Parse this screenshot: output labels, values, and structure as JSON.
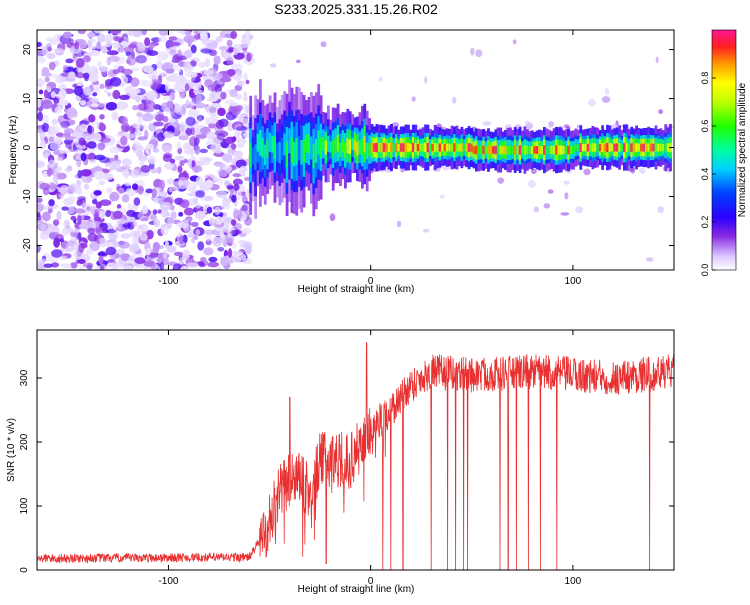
{
  "title": "S233.2025.331.15.26.R02",
  "chart_data": [
    {
      "type": "heatmap",
      "title": "S233.2025.331.15.26.R02",
      "xlabel": "Height of straight line (km)",
      "ylabel": "Frequency (Hz)",
      "xlim": [
        -165,
        150
      ],
      "ylim": [
        -25,
        24
      ],
      "x_ticks": [
        "-100",
        "0",
        "100"
      ],
      "y_ticks": [
        "-20",
        "-10",
        "0",
        "10",
        "20"
      ],
      "x_tick_values": [
        -100,
        0,
        100
      ],
      "y_tick_values": [
        -20,
        -10,
        0,
        10,
        20
      ],
      "colorbar": {
        "label": "Normalized spectral amplitude",
        "range": [
          0,
          1
        ],
        "ticks": [
          "0.0",
          "0.2",
          "0.4",
          "0.6",
          "0.8"
        ],
        "tick_values": [
          0,
          0.2,
          0.4,
          0.6,
          0.8
        ]
      },
      "description_regions": {
        "noise_region_x": [
          -165,
          -60
        ],
        "signal_start_x": -60,
        "signal_freq_hz": 0
      }
    },
    {
      "type": "line",
      "xlabel": "Height of straight line (km)",
      "ylabel": "SNR (10 * v/v)",
      "xlim": [
        -165,
        150
      ],
      "ylim": [
        0,
        375
      ],
      "x_ticks": [
        "-100",
        "0",
        "100"
      ],
      "y_ticks": [
        "0",
        "100",
        "200",
        "300"
      ],
      "x_tick_values": [
        -100,
        0,
        100
      ],
      "y_tick_values": [
        0,
        100,
        200,
        300
      ],
      "series": [
        {
          "name": "SNR",
          "color": "#e83030",
          "anchors_x": [
            -165,
            -60,
            -52,
            -45,
            -38,
            -30,
            -25,
            -20,
            -10,
            -5,
            0,
            10,
            20,
            30,
            50,
            80,
            120,
            150
          ],
          "anchors_y": [
            18,
            20,
            60,
            120,
            150,
            120,
            170,
            175,
            170,
            195,
            220,
            250,
            290,
            310,
            305,
            310,
            300,
            310
          ]
        }
      ],
      "spike_x": [
        -40,
        -22,
        -2,
        6,
        10,
        16,
        30,
        38,
        42,
        46,
        48,
        64,
        68,
        72,
        78,
        84,
        92,
        138
      ]
    }
  ]
}
